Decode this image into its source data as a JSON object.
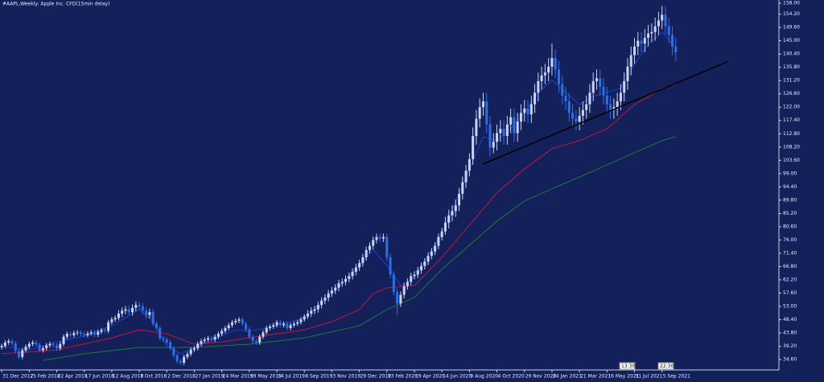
{
  "chart_data": {
    "type": "candlestick",
    "title": "#AAPL,Weekly:  Apple Inc. CFD(15min delay)",
    "background": "#13205a",
    "up_color": "#c9d3f6",
    "down_color": "#2f6fe6",
    "xlim": [
      -0.5,
      226
    ],
    "xticks": [
      {
        "value": 0,
        "label": "31 Dec 2017"
      },
      {
        "value": 8,
        "label": "25 Feb 2018"
      },
      {
        "value": 16,
        "label": "22 Apr 2018"
      },
      {
        "value": 24,
        "label": "17 Jun 2018"
      },
      {
        "value": 32,
        "label": "12 Aug 2018"
      },
      {
        "value": 40,
        "label": "7 Oct 2018"
      },
      {
        "value": 48,
        "label": "2 Dec 2018"
      },
      {
        "value": 56,
        "label": "27 Jan 2019"
      },
      {
        "value": 64,
        "label": "24 Mar 2019"
      },
      {
        "value": 72,
        "label": "19 May 2019"
      },
      {
        "value": 80,
        "label": "14 Jul 2019"
      },
      {
        "value": 88,
        "label": "8 Sep 2019"
      },
      {
        "value": 96,
        "label": "3 Nov 2019"
      },
      {
        "value": 104,
        "label": "29 Dec 2019"
      },
      {
        "value": 112,
        "label": "23 Feb 2020"
      },
      {
        "value": 120,
        "label": "19 Apr 2020"
      },
      {
        "value": 128,
        "label": "14 Jun 2020"
      },
      {
        "value": 136,
        "label": "9 Aug 2020"
      },
      {
        "value": 144,
        "label": "4 Oct 2020"
      },
      {
        "value": 152,
        "label": "29 Nov 2020"
      },
      {
        "value": 160,
        "label": "24 Jan 2021"
      },
      {
        "value": 168,
        "label": "21 Mar 2021"
      },
      {
        "value": 176,
        "label": "16 May 2021"
      },
      {
        "value": 184,
        "label": "11 Jul 2021"
      },
      {
        "value": 192,
        "label": "5 Sep 2021"
      }
    ],
    "ylim": [
      31,
      159.1
    ],
    "yticks": [
      {
        "value": 158,
        "label": "158.00"
      },
      {
        "value": 154.2,
        "label": "154.20"
      },
      {
        "value": 149.6,
        "label": "149.60"
      },
      {
        "value": 145,
        "label": "145.00"
      },
      {
        "value": 140.4,
        "label": "140.40"
      },
      {
        "value": 135.8,
        "label": "135.80"
      },
      {
        "value": 131.2,
        "label": "131.20"
      },
      {
        "value": 126.6,
        "label": "126.60"
      },
      {
        "value": 122,
        "label": "122.00"
      },
      {
        "value": 117.4,
        "label": "117.40"
      },
      {
        "value": 112.8,
        "label": "112.80"
      },
      {
        "value": 108.2,
        "label": "108.20"
      },
      {
        "value": 103.6,
        "label": "103.60"
      },
      {
        "value": 99,
        "label": "99.00"
      },
      {
        "value": 94.4,
        "label": "94.40"
      },
      {
        "value": 89.8,
        "label": "89.80"
      },
      {
        "value": 85.2,
        "label": "85.20"
      },
      {
        "value": 80.6,
        "label": "80.60"
      },
      {
        "value": 76,
        "label": "76.00"
      },
      {
        "value": 71.4,
        "label": "71.40"
      },
      {
        "value": 66.8,
        "label": "66.80"
      },
      {
        "value": 62.2,
        "label": "62.20"
      },
      {
        "value": 57.6,
        "label": "57.60"
      },
      {
        "value": 53,
        "label": "53.00"
      },
      {
        "value": 48.4,
        "label": "48.40"
      },
      {
        "value": 43.8,
        "label": "43.80"
      },
      {
        "value": 39.2,
        "label": "39.20"
      },
      {
        "value": 34.6,
        "label": "34.60"
      }
    ],
    "candles": {
      "open": [
        38.8,
        39.3,
        40.5,
        41.0,
        40.2,
        37.5,
        35.5,
        37.8,
        39.0,
        40.0,
        40.5,
        39.8,
        37.8,
        38.5,
        39.5,
        40.0,
        39.5,
        38.5,
        40.0,
        42.5,
        43.5,
        43.0,
        43.8,
        44.0,
        43.5,
        43.0,
        43.6,
        44.0,
        43.2,
        44.2,
        44.8,
        44.5,
        47.5,
        48.5,
        49.0,
        50.5,
        51.5,
        52.0,
        51.0,
        52.5,
        53.5,
        53.0,
        51.5,
        50.0,
        51.0,
        47.0,
        45.5,
        42.0,
        41.5,
        40.5,
        38.5,
        36.0,
        34.0,
        33.5,
        35.5,
        36.5,
        38.0,
        38.5,
        40.0,
        41.0,
        41.5,
        42.0,
        41.5,
        42.5,
        43.5,
        44.5,
        45.5,
        46.5,
        47.5,
        48.0,
        48.5,
        47.0,
        45.0,
        42.5,
        41.0,
        40.5,
        42.5,
        44.0,
        45.5,
        46.0,
        46.5,
        47.5,
        46.5,
        47.0,
        45.5,
        46.5,
        47.0,
        47.5,
        48.5,
        49.5,
        50.5,
        51.5,
        52.0,
        53.5,
        55.0,
        56.0,
        57.5,
        58.5,
        59.5,
        61.0,
        61.5,
        62.5,
        63.5,
        65.0,
        66.5,
        68.0,
        70.0,
        72.5,
        74.0,
        76.0,
        77.0,
        76.5,
        77.0,
        70.0,
        64.0,
        58.0,
        54.0,
        57.0,
        60.0,
        61.5,
        63.5,
        64.0,
        65.5,
        67.0,
        68.5,
        70.5,
        72.0,
        74.0,
        77.0,
        79.0,
        82.0,
        84.5,
        86.0,
        88.0,
        92.0,
        96.0,
        100.0,
        104.0,
        112.0,
        118.0,
        122.0,
        124.0,
        116.0,
        108.0,
        110.0,
        113.0,
        114.5,
        112.0,
        116.0,
        118.5,
        113.0,
        117.0,
        120.0,
        121.5,
        119.5,
        123.0,
        127.0,
        131.0,
        133.0,
        134.0,
        136.0,
        139.0,
        135.0,
        130.0,
        126.0,
        124.0,
        120.0,
        118.0,
        117.0,
        119.0,
        121.0,
        123.0,
        127.0,
        131.0,
        132.0,
        129.0,
        126.0,
        123.0,
        121.0,
        122.0,
        124.0,
        127.0,
        131.0,
        136.0,
        140.0,
        143.0,
        145.0,
        144.0,
        146.0,
        147.5,
        148.0,
        150.0,
        152.0,
        154.0,
        150.0,
        147.0,
        143.0
      ],
      "high": [
        40.1,
        41.3,
        41.8,
        41.8,
        41.0,
        38.3,
        38.6,
        39.8,
        40.8,
        41.3,
        41.3,
        40.6,
        39.3,
        40.3,
        40.8,
        40.8,
        40.3,
        40.8,
        43.3,
        44.3,
        44.3,
        44.6,
        44.8,
        44.8,
        44.3,
        44.4,
        44.8,
        44.8,
        45.0,
        45.6,
        45.6,
        48.3,
        49.3,
        49.8,
        51.7,
        52.7,
        53.2,
        53.2,
        53.7,
        54.7,
        54.7,
        54.2,
        52.7,
        52.2,
        52.2,
        47.8,
        46.3,
        42.8,
        42.3,
        41.3,
        39.3,
        36.8,
        34.8,
        36.3,
        37.3,
        38.8,
        39.3,
        40.8,
        41.8,
        42.3,
        42.8,
        42.8,
        43.3,
        44.3,
        45.3,
        46.3,
        47.3,
        48.3,
        48.8,
        49.3,
        49.3,
        47.8,
        45.8,
        43.3,
        41.8,
        43.3,
        44.8,
        46.3,
        46.8,
        47.3,
        48.3,
        48.3,
        47.8,
        47.8,
        47.3,
        47.8,
        48.3,
        49.3,
        50.3,
        51.7,
        52.7,
        53.2,
        54.7,
        56.2,
        57.2,
        58.7,
        59.7,
        60.7,
        62.2,
        62.7,
        63.7,
        64.7,
        66.2,
        67.7,
        69.2,
        71.2,
        73.7,
        75.2,
        77.2,
        78.2,
        78.2,
        78.2,
        78.2,
        71.2,
        65.2,
        59.2,
        58.2,
        61.2,
        62.7,
        64.7,
        65.2,
        66.7,
        68.2,
        69.7,
        71.7,
        73.2,
        75.2,
        78.2,
        80.2,
        84.0,
        86.5,
        88.0,
        90.0,
        94.0,
        98.0,
        102.0,
        106.0,
        115.0,
        121.0,
        125.0,
        127.0,
        127.0,
        119.0,
        113.0,
        116.0,
        117.5,
        117.5,
        119.0,
        121.5,
        121.5,
        120.0,
        123.0,
        124.5,
        124.5,
        126.0,
        130.0,
        134.0,
        136.0,
        137.0,
        139.0,
        144.0,
        142.0,
        138.0,
        133.0,
        129.0,
        127.0,
        123.0,
        121.0,
        122.0,
        124.0,
        126.0,
        130.0,
        134.0,
        135.0,
        135.0,
        132.0,
        129.0,
        126.0,
        125.0,
        127.0,
        130.0,
        134.0,
        139.0,
        143.0,
        146.0,
        148.0,
        148.0,
        149.0,
        150.5,
        151.0,
        153.0,
        155.0,
        157.0,
        157.0,
        153.0,
        150.0,
        146.0
      ],
      "low": [
        38.0,
        38.5,
        39.7,
        39.4,
        36.7,
        34.7,
        34.7,
        37.0,
        38.2,
        39.2,
        39.0,
        37.0,
        37.0,
        37.7,
        38.7,
        38.7,
        37.7,
        37.7,
        39.2,
        41.7,
        42.2,
        42.2,
        43.0,
        42.7,
        42.2,
        42.2,
        42.8,
        42.4,
        42.4,
        43.4,
        43.7,
        43.7,
        46.7,
        47.7,
        48.2,
        49.3,
        50.3,
        49.8,
        49.8,
        51.3,
        51.8,
        50.3,
        48.8,
        48.8,
        46.2,
        44.7,
        41.2,
        40.7,
        39.7,
        37.7,
        35.2,
        33.2,
        32.7,
        32.7,
        34.7,
        35.7,
        37.2,
        37.7,
        39.2,
        40.2,
        40.7,
        40.7,
        40.7,
        41.7,
        42.7,
        43.7,
        44.7,
        45.7,
        46.7,
        47.2,
        46.2,
        44.2,
        41.7,
        40.2,
        39.7,
        39.7,
        41.7,
        43.2,
        44.7,
        45.2,
        45.7,
        45.7,
        45.7,
        44.7,
        44.7,
        45.7,
        46.2,
        46.7,
        47.7,
        48.7,
        49.3,
        50.3,
        50.8,
        52.3,
        53.8,
        54.8,
        56.3,
        57.3,
        58.3,
        59.8,
        60.3,
        61.3,
        62.3,
        63.8,
        65.3,
        66.8,
        68.8,
        71.3,
        72.8,
        74.8,
        75.3,
        75.3,
        68.8,
        62.8,
        56.8,
        50.0,
        52.8,
        55.8,
        58.8,
        60.3,
        62.3,
        62.8,
        64.3,
        65.8,
        67.3,
        69.3,
        70.8,
        72.8,
        75.8,
        77.8,
        80.0,
        82.5,
        84.0,
        86.0,
        90.0,
        94.0,
        98.0,
        102.0,
        109.0,
        115.0,
        119.0,
        113.0,
        105.0,
        106.0,
        107.0,
        110.0,
        109.0,
        109.0,
        113.0,
        110.0,
        110.0,
        114.0,
        117.0,
        116.5,
        116.5,
        120.0,
        124.0,
        128.0,
        130.0,
        131.0,
        133.0,
        132.0,
        127.0,
        123.0,
        121.0,
        117.0,
        115.0,
        114.0,
        114.0,
        116.0,
        118.0,
        120.0,
        124.0,
        128.0,
        126.0,
        123.0,
        120.0,
        118.0,
        118.0,
        119.0,
        121.0,
        124.0,
        128.0,
        133.0,
        137.0,
        140.0,
        141.0,
        141.0,
        143.0,
        144.5,
        145.0,
        147.0,
        149.0,
        147.0,
        144.0,
        140.0,
        138.0
      ],
      "close": [
        39.3,
        40.5,
        41.0,
        40.2,
        37.5,
        35.5,
        37.8,
        39.0,
        40.0,
        40.5,
        39.8,
        37.8,
        38.5,
        39.5,
        40.0,
        39.5,
        38.5,
        40.0,
        42.5,
        43.5,
        43.0,
        43.8,
        44.0,
        43.5,
        43.0,
        43.6,
        44.0,
        43.2,
        44.2,
        44.8,
        44.5,
        47.5,
        48.5,
        49.0,
        50.5,
        51.5,
        52.0,
        51.0,
        52.5,
        53.5,
        53.0,
        51.5,
        50.0,
        51.0,
        47.0,
        45.5,
        42.0,
        41.5,
        40.5,
        38.5,
        36.0,
        34.0,
        33.5,
        35.5,
        36.5,
        38.0,
        38.5,
        40.0,
        41.0,
        41.5,
        42.0,
        41.5,
        42.5,
        43.5,
        44.5,
        45.5,
        46.5,
        47.5,
        48.0,
        48.5,
        47.0,
        45.0,
        42.5,
        41.0,
        40.5,
        42.5,
        44.0,
        45.5,
        46.0,
        46.5,
        47.5,
        46.5,
        47.0,
        45.5,
        46.5,
        47.0,
        47.5,
        48.5,
        49.5,
        50.5,
        51.5,
        52.0,
        53.5,
        55.0,
        56.0,
        57.5,
        58.5,
        59.5,
        61.0,
        61.5,
        62.5,
        63.5,
        65.0,
        66.5,
        68.0,
        70.0,
        72.5,
        74.0,
        76.0,
        77.0,
        76.5,
        77.0,
        70.0,
        64.0,
        58.0,
        54.0,
        57.0,
        60.0,
        61.5,
        63.5,
        64.0,
        65.5,
        67.0,
        68.5,
        70.5,
        72.0,
        74.0,
        77.0,
        79.0,
        82.0,
        84.5,
        86.0,
        88.0,
        92.0,
        96.0,
        100.0,
        104.0,
        112.0,
        118.0,
        122.0,
        124.0,
        116.0,
        108.0,
        110.0,
        113.0,
        114.5,
        112.0,
        116.0,
        118.5,
        113.0,
        117.0,
        120.0,
        121.5,
        119.5,
        123.0,
        127.0,
        131.0,
        133.0,
        134.0,
        136.0,
        139.0,
        135.0,
        130.0,
        126.0,
        124.0,
        120.0,
        118.0,
        117.0,
        119.0,
        121.0,
        123.0,
        127.0,
        131.0,
        132.0,
        129.0,
        126.0,
        123.0,
        121.0,
        122.0,
        124.0,
        127.0,
        131.0,
        136.0,
        140.0,
        143.0,
        145.0,
        144.0,
        146.0,
        147.5,
        148.0,
        150.0,
        152.0,
        154.0,
        150.0,
        147.0,
        143.0,
        141.0
      ]
    },
    "lines": [
      {
        "color": "#1c3fd6",
        "x": [
          0,
          8,
          16,
          24,
          32,
          40,
          44,
          48,
          52,
          60,
          68,
          72,
          80,
          88,
          96,
          104,
          108,
          112,
          116,
          120,
          128,
          136,
          140,
          144,
          148,
          152,
          156,
          160,
          164,
          168,
          172,
          176,
          180,
          184,
          188,
          192,
          196
        ],
        "values": [
          39.3,
          37.9,
          40.7,
          42.7,
          46.3,
          51.9,
          47.7,
          39.3,
          36.6,
          40.7,
          44.9,
          44.4,
          46.3,
          49.1,
          57.4,
          67.2,
          72.8,
          67.2,
          60.2,
          63.0,
          78.3,
          100.6,
          111.8,
          110.4,
          114.5,
          120.1,
          127.1,
          131.3,
          127.1,
          122.9,
          125.7,
          127.1,
          128.5,
          136.8,
          143.8,
          148.0,
          142.4
        ]
      },
      {
        "color": "#c4143f",
        "x": [
          0,
          16,
          32,
          40,
          48,
          56,
          64,
          72,
          80,
          88,
          96,
          104,
          108,
          112,
          120,
          128,
          136,
          144,
          152,
          160,
          168,
          176,
          184,
          192,
          196
        ],
        "values": [
          36.6,
          37.9,
          42.1,
          44.9,
          43.5,
          39.9,
          40.7,
          42.1,
          43.5,
          44.9,
          47.7,
          51.9,
          57.4,
          59.4,
          60.2,
          70.0,
          81.1,
          92.3,
          100.6,
          107.6,
          110.4,
          114.5,
          122.9,
          128.5,
          129.9
        ]
      },
      {
        "color": "#1e7a3c",
        "x": [
          12,
          24,
          40,
          56,
          72,
          88,
          104,
          112,
          120,
          128,
          136,
          144,
          152,
          160,
          168,
          176,
          184,
          192,
          196
        ],
        "values": [
          34.3,
          36.6,
          38.8,
          38.8,
          39.9,
          42.1,
          46.3,
          51.9,
          56.1,
          65.8,
          74.2,
          82.5,
          89.5,
          93.7,
          97.8,
          102.0,
          106.2,
          110.4,
          111.8
        ]
      }
    ],
    "trendline": {
      "color": "#000000",
      "x": [
        140,
        211
      ],
      "values": [
        102.3,
        137.7
      ]
    },
    "time_boxes": [
      "13:30",
      "22:30"
    ]
  }
}
